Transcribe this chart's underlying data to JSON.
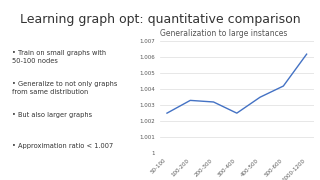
{
  "title": "Learning graph opt: quantitative comparison",
  "chart_title": "Generalization to large instances",
  "bullet_points": [
    "Train on small graphs with\n50-100 nodes",
    "Generalize to not only graphs\nfrom same distribution",
    "But also larger graphs",
    "Approximation ratio < 1.007"
  ],
  "x_labels": [
    "50-100",
    "100-200",
    "200-300",
    "300-400",
    "400-500",
    "500-600",
    "1000-1200"
  ],
  "y_values": [
    1.0025,
    1.0033,
    1.0032,
    1.0025,
    1.0035,
    1.0042,
    1.0062
  ],
  "ylim": [
    1.0,
    1.007
  ],
  "yticks": [
    1,
    1.001,
    1.002,
    1.003,
    1.004,
    1.005,
    1.006,
    1.007
  ],
  "line_color": "#4472C4",
  "background_color": "#ffffff",
  "title_fontsize": 9,
  "chart_title_fontsize": 5.5,
  "bullet_fontsize": 4.8,
  "tick_fontsize": 4.0
}
